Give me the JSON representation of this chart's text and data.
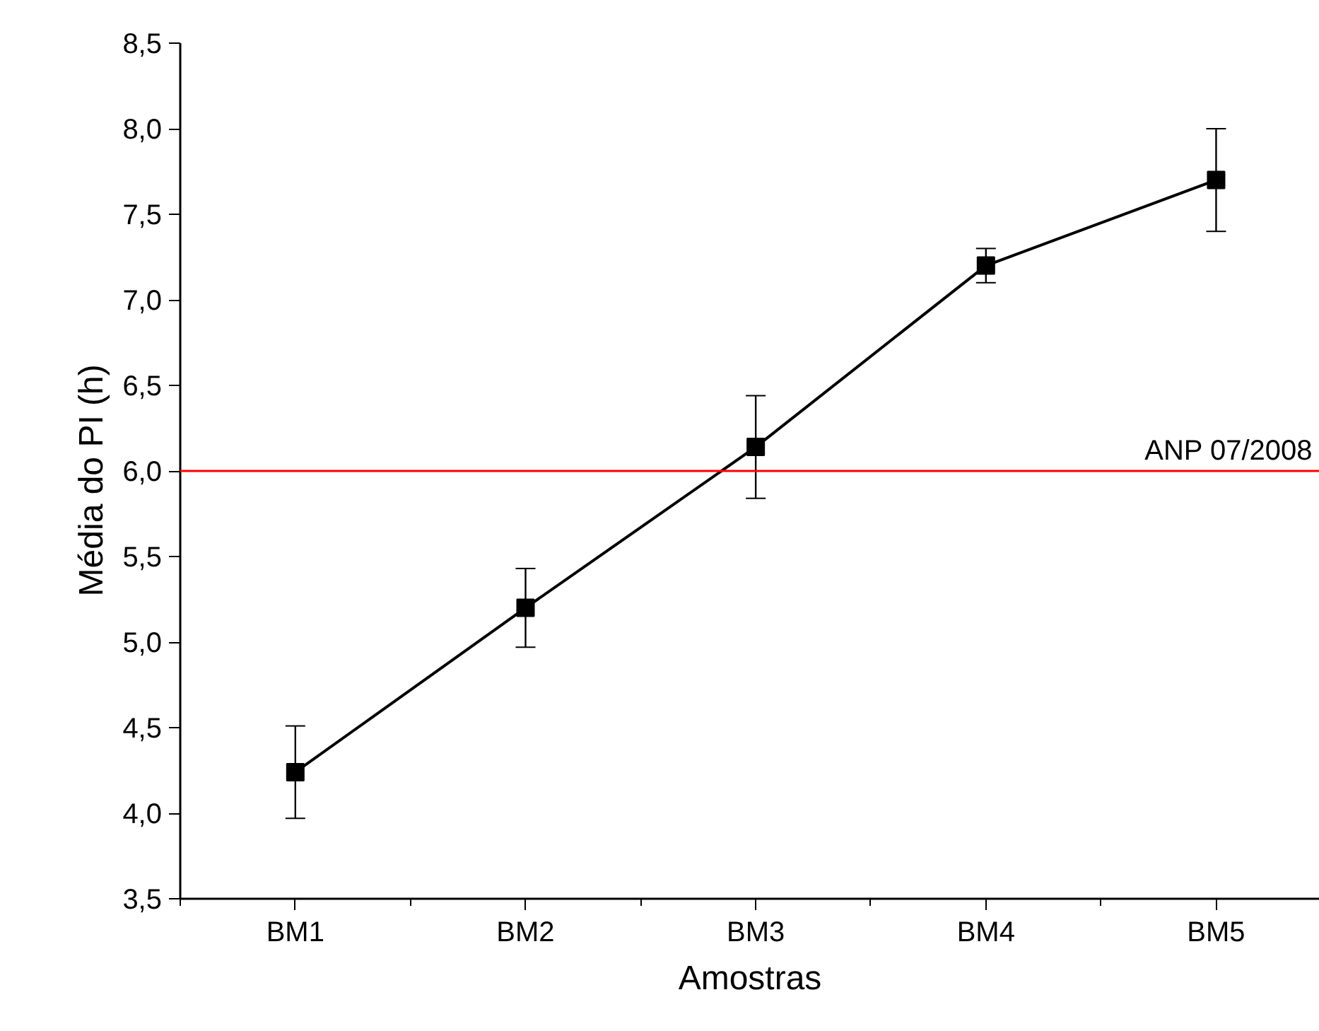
{
  "chart_data": {
    "type": "line",
    "xlabel": "Amostras",
    "ylabel": "Média do PI   (h)",
    "categories": [
      "BM1",
      "BM2",
      "BM3",
      "BM4",
      "BM5"
    ],
    "series": [
      {
        "color": "#000000",
        "values": [
          4.24,
          5.2,
          6.14,
          7.2,
          7.7
        ],
        "errors": [
          0.27,
          0.23,
          0.3,
          0.1,
          0.3
        ]
      }
    ],
    "ylim": [
      3.5,
      8.5
    ],
    "yticks": [
      {
        "value": 3.5,
        "label": "3,5"
      },
      {
        "value": 4.0,
        "label": "4,0"
      },
      {
        "value": 4.5,
        "label": "4,5"
      },
      {
        "value": 5.0,
        "label": "5,0"
      },
      {
        "value": 5.5,
        "label": "5,5"
      },
      {
        "value": 6.0,
        "label": "6,0"
      },
      {
        "value": 6.5,
        "label": "6,5"
      },
      {
        "value": 7.0,
        "label": "7,0"
      },
      {
        "value": 7.5,
        "label": "7,5"
      },
      {
        "value": 8.0,
        "label": "8,0"
      },
      {
        "value": 8.5,
        "label": "8,5"
      }
    ],
    "ref_lines": [
      {
        "axis": "y",
        "value": 6.0,
        "label": "ANP 07/2008",
        "color": "#ff0000"
      }
    ],
    "marker": "square",
    "line_style": "solid",
    "grid": false
  }
}
